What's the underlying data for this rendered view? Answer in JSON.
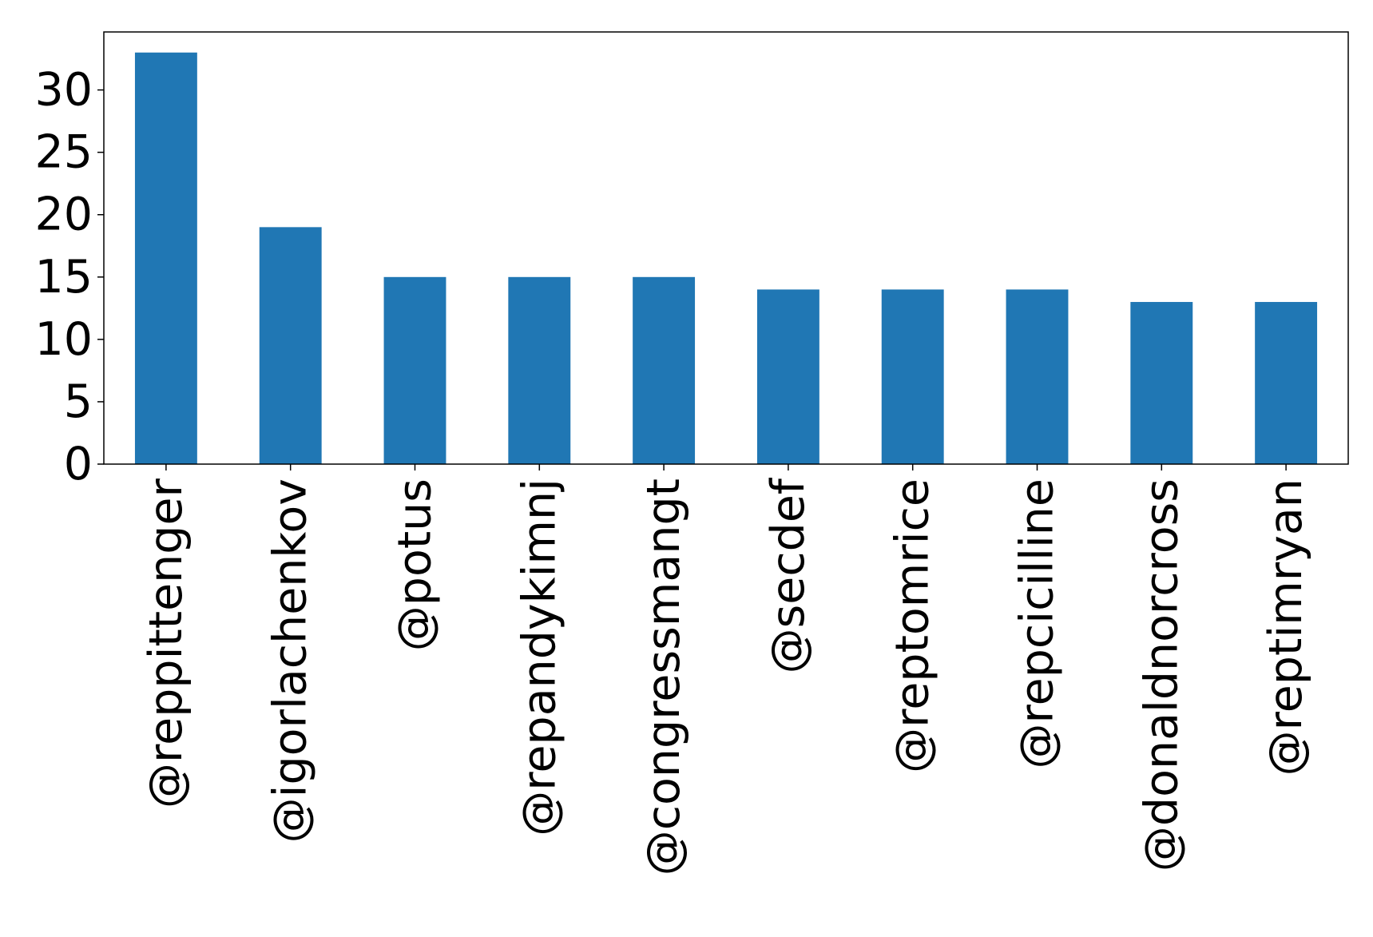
{
  "chart_data": {
    "type": "bar",
    "title": "",
    "xlabel": "",
    "ylabel": "",
    "categories": [
      "@reppittenger",
      "@igorlachenkov",
      "@potus",
      "@repandykimnj",
      "@congressmangt",
      "@secdef",
      "@reptomrice",
      "@repcicilline",
      "@donaldnorcross",
      "@reptimryan"
    ],
    "values": [
      33,
      19,
      15,
      15,
      15,
      14,
      14,
      14,
      13,
      13
    ],
    "ylim": [
      0,
      34.65
    ],
    "yticks": [
      0,
      5,
      10,
      15,
      20,
      25,
      30
    ],
    "grid": false,
    "bar_color": "#2077b4"
  }
}
